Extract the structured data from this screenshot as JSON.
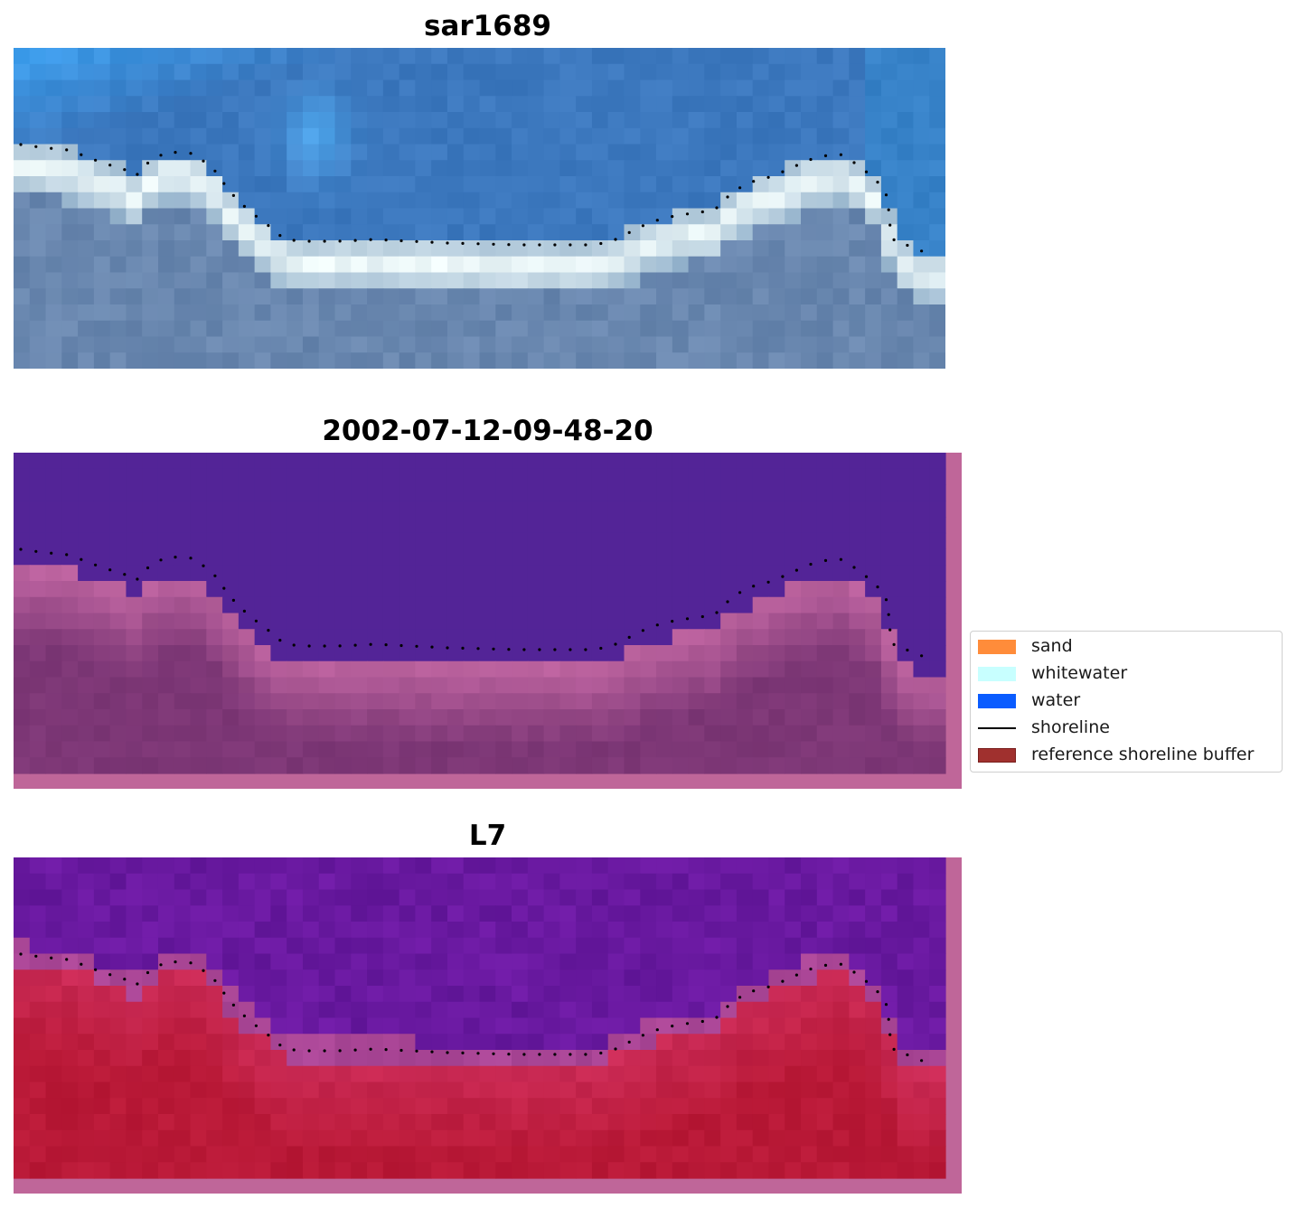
{
  "panels": [
    {
      "id": "rgb",
      "title": "sar1689"
    },
    {
      "id": "classification",
      "title": "2002-07-12-09-48-20"
    },
    {
      "id": "index",
      "title": "L7"
    }
  ],
  "legend": {
    "items": [
      {
        "label": "sand",
        "color": "#ff8c3a",
        "kind": "patch"
      },
      {
        "label": "whitewater",
        "color": "#c8ffff",
        "kind": "patch"
      },
      {
        "label": "water",
        "color": "#0a5cff",
        "kind": "patch"
      },
      {
        "label": "shoreline",
        "color": "#000000",
        "kind": "line"
      },
      {
        "label": "reference shoreline buffer",
        "color": "#a0302e",
        "kind": "patch",
        "edge": "#7a1f1d"
      }
    ]
  },
  "colors": {
    "water_class": "#532497",
    "buffer_frame": "#bf6699",
    "shoreline_dots": "#000000"
  }
}
